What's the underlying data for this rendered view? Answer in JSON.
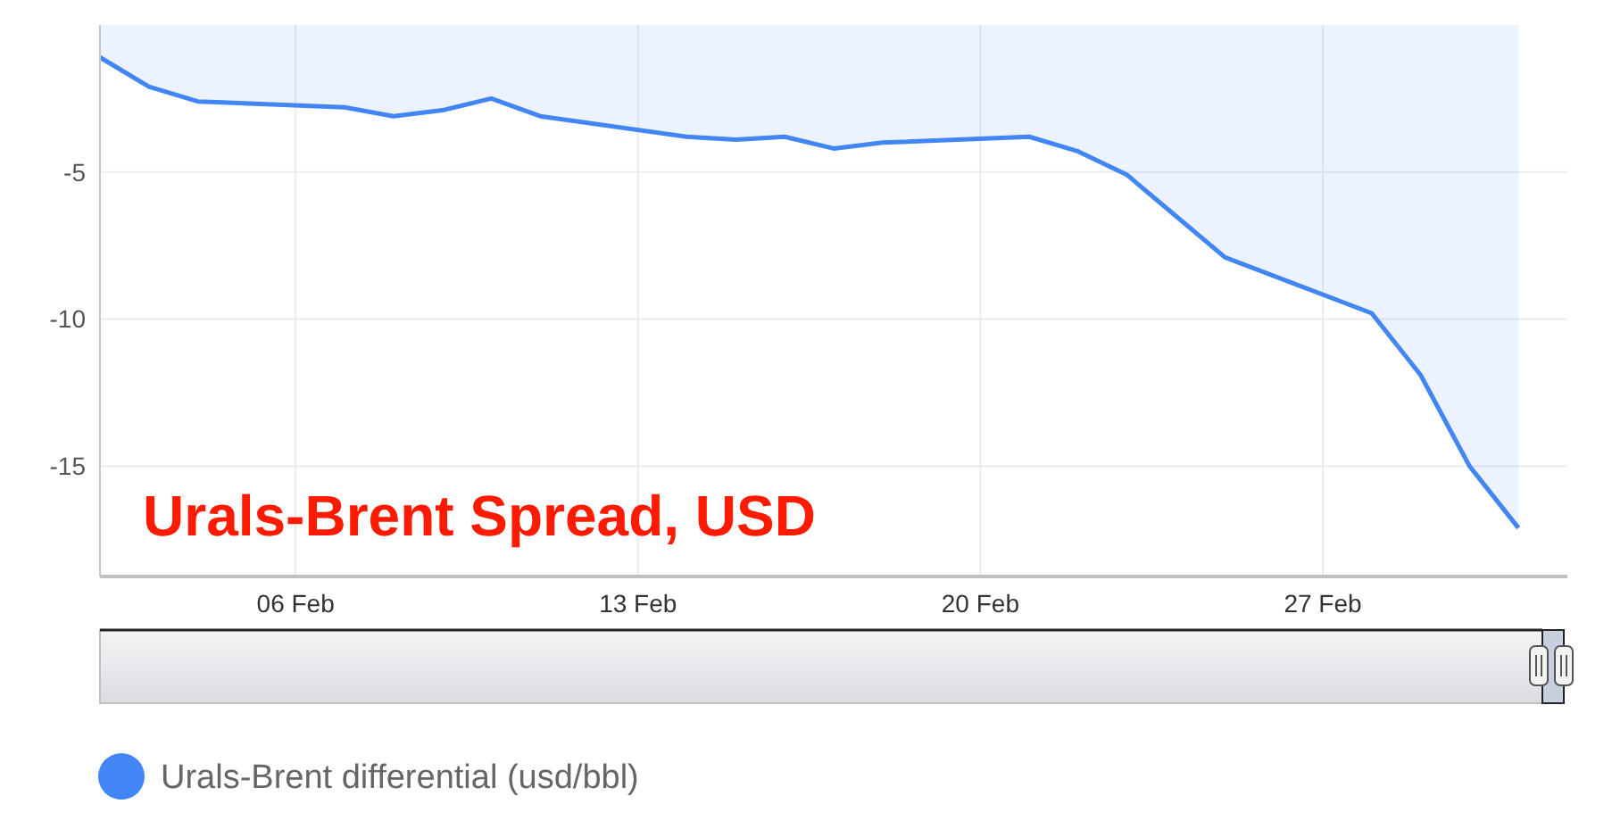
{
  "chart_data": {
    "type": "area",
    "title": "Urals-Brent Spread, USD",
    "x": [
      "--02-02",
      "--02-03",
      "--02-04",
      "--02-07",
      "--02-08",
      "--02-09",
      "--02-10",
      "--02-11",
      "--02-14",
      "--02-15",
      "--02-16",
      "--02-17",
      "--02-18",
      "--02-21",
      "--02-22",
      "--02-23",
      "--02-24",
      "--02-25",
      "--02-28",
      "--03-01",
      "--03-02",
      "--03-03"
    ],
    "series": [
      {
        "name": "Urals-Brent differential (usd/bbl)",
        "color": "#4285f4",
        "values": [
          -1.1,
          -2.1,
          -2.6,
          -2.8,
          -3.1,
          -2.9,
          -2.5,
          -3.1,
          -3.8,
          -3.9,
          -3.8,
          -4.2,
          -4.0,
          -3.8,
          -4.3,
          -5.1,
          -6.5,
          -7.9,
          -9.8,
          -11.9,
          -15.0,
          -17.1
        ]
      }
    ],
    "xlim": [
      "--02-02",
      "--03-04"
    ],
    "xticks": [
      {
        "value": "--02-06",
        "label": "06 Feb"
      },
      {
        "value": "--02-13",
        "label": "13 Feb"
      },
      {
        "value": "--02-20",
        "label": "20 Feb"
      },
      {
        "value": "--02-27",
        "label": "27 Feb"
      }
    ],
    "ylim": [
      -18.75,
      0
    ],
    "yticks": [
      -5,
      -10,
      -15
    ],
    "grid": true,
    "legend": "bottom left"
  }
}
